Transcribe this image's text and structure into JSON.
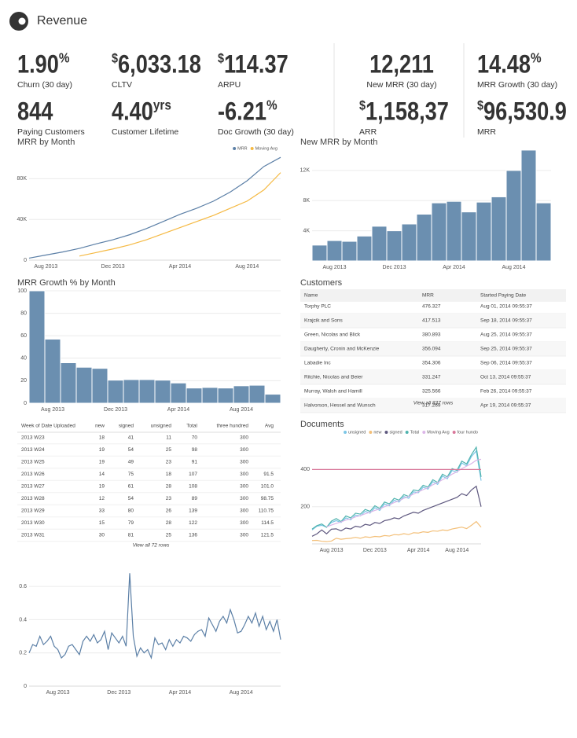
{
  "header": {
    "title": "Revenue"
  },
  "kpis": [
    {
      "value": "1.90",
      "sup": "%",
      "label": "Churn (30 day)"
    },
    {
      "prefix": "$",
      "value": "6,033.18",
      "label": "CLTV"
    },
    {
      "prefix": "$",
      "value": "114.37",
      "label": "ARPU"
    },
    {
      "value": "844",
      "label": "Paying Customers"
    },
    {
      "value": "4.40",
      "sup": "yrs",
      "label": "Customer Lifetime"
    },
    {
      "value": "-6.21",
      "sup": "%",
      "label": "Doc Growth (30 day)"
    },
    {
      "value": "12,211",
      "label": "New MRR (30 day)"
    },
    {
      "value": "14.48",
      "sup": "%",
      "label": "MRR Growth (30 day)"
    },
    {
      "prefix": "$",
      "value": "1,158,37",
      "label": "ARR"
    },
    {
      "prefix": "$",
      "value": "96,530.9",
      "label": "MRR"
    }
  ],
  "chart_data": [
    {
      "type": "line",
      "title": "MRR by Month",
      "legend": "top-right",
      "grid": true,
      "categories": [
        null,
        "Aug 2013",
        null,
        null,
        null,
        "Dec 2013",
        null,
        null,
        null,
        "Apr 2014",
        null,
        null,
        null,
        "Aug 2014",
        null,
        null
      ],
      "series": [
        {
          "name": "MRR",
          "color": "#5b7fa6",
          "values": [
            2000,
            5000,
            8000,
            11500,
            16000,
            20000,
            25000,
            31000,
            38000,
            45000,
            51000,
            58000,
            67000,
            78000,
            92000,
            101000
          ]
        },
        {
          "name": "Moving Avg",
          "color": "#f5b942",
          "values": [
            null,
            null,
            null,
            4000,
            7500,
            11000,
            15000,
            20000,
            26000,
            32000,
            38000,
            44000,
            51000,
            58000,
            69000,
            86000
          ]
        }
      ],
      "ylim": [
        0,
        105000
      ],
      "yticks": [
        0,
        {
          "value": 40000,
          "label": "40K"
        },
        {
          "value": 80000,
          "label": "80K"
        }
      ]
    },
    {
      "type": "bar",
      "title": "New MRR by Month",
      "grid": true,
      "color": "#6b8fb0",
      "categories": [
        null,
        "Aug 2013",
        null,
        null,
        null,
        "Dec 2013",
        null,
        null,
        null,
        "Apr 2014",
        null,
        null,
        null,
        "Aug 2014",
        null,
        null
      ],
      "values": [
        2100,
        2700,
        2600,
        3300,
        4600,
        4000,
        4900,
        6200,
        7700,
        7900,
        6500,
        7800,
        8500,
        12000,
        14700,
        7700
      ],
      "ylim": [
        0,
        14800
      ],
      "yticks": [
        {
          "value": 4000,
          "label": "4K"
        },
        {
          "value": 8000,
          "label": "8K"
        },
        {
          "value": 12000,
          "label": "12K"
        }
      ]
    },
    {
      "type": "bar",
      "title": "MRR Growth % by Month",
      "grid": true,
      "color": "#6b8fb0",
      "categories": [
        null,
        "Aug 2013",
        null,
        null,
        null,
        "Dec 2013",
        null,
        null,
        null,
        "Apr 2014",
        null,
        null,
        null,
        "Aug 2014",
        null,
        null
      ],
      "values": [
        100,
        57,
        36,
        32,
        31,
        20.5,
        21,
        21,
        20.5,
        18,
        13.5,
        14,
        13.5,
        15.5,
        16,
        8
      ],
      "ylim": [
        0,
        100
      ],
      "yticks": [
        0,
        20,
        40,
        60,
        80,
        100
      ]
    },
    {
      "type": "line",
      "title": "Documents",
      "legend": "top",
      "grid": true,
      "categories": [
        null,
        null,
        null,
        null,
        "Aug 2013",
        null,
        null,
        null,
        null,
        null,
        null,
        null,
        null,
        "Dec 2013",
        null,
        null,
        null,
        null,
        null,
        null,
        null,
        null,
        "Apr 2014",
        null,
        null,
        null,
        null,
        null,
        null,
        null,
        "Aug 2014",
        null,
        null,
        null,
        null,
        null
      ],
      "series": [
        {
          "name": "unsigned",
          "color": "#7cc6e6",
          "values": [
            75,
            95,
            100,
            90,
            115,
            125,
            115,
            140,
            130,
            155,
            150,
            175,
            165,
            195,
            180,
            215,
            205,
            235,
            225,
            255,
            245,
            280,
            275,
            305,
            295,
            335,
            320,
            365,
            350,
            395,
            385,
            435,
            420,
            470,
            500,
            340
          ]
        },
        {
          "name": "new",
          "color": "#f3bf78",
          "values": [
            18,
            19,
            14,
            12,
            15,
            30,
            25,
            28,
            30,
            35,
            30,
            38,
            35,
            40,
            38,
            45,
            42,
            50,
            48,
            55,
            50,
            60,
            58,
            65,
            62,
            70,
            68,
            75,
            72,
            80,
            85,
            90,
            82,
            100,
            120,
            90
          ]
        },
        {
          "name": "signed",
          "color": "#5e587f",
          "values": [
            41,
            54,
            75,
            54,
            79,
            81,
            70,
            85,
            80,
            95,
            90,
            105,
            100,
            115,
            110,
            125,
            130,
            140,
            135,
            150,
            160,
            170,
            165,
            180,
            190,
            200,
            210,
            220,
            230,
            240,
            250,
            270,
            260,
            290,
            310,
            200
          ]
        },
        {
          "name": "Total",
          "color": "#4fb3ae",
          "values": [
            80,
            98,
            107,
            89,
            122,
            136,
            120,
            150,
            140,
            165,
            160,
            185,
            175,
            205,
            190,
            225,
            215,
            245,
            235,
            265,
            255,
            290,
            285,
            315,
            305,
            345,
            330,
            375,
            360,
            405,
            395,
            445,
            430,
            480,
            520,
            360
          ]
        },
        {
          "name": "Moving Avg",
          "color": "#dcb6e8",
          "values": [
            null,
            null,
            null,
            91,
            101,
            110,
            118,
            128,
            135,
            145,
            152,
            162,
            170,
            180,
            188,
            200,
            210,
            222,
            232,
            245,
            255,
            268,
            280,
            292,
            302,
            318,
            330,
            345,
            358,
            375,
            388,
            405,
            418,
            432,
            450,
            455
          ]
        },
        {
          "name": "four hundo",
          "color": "#d9779a",
          "values": [
            400,
            400,
            400,
            400,
            400,
            400,
            400,
            400,
            400,
            400,
            400,
            400,
            400,
            400,
            400,
            400,
            400,
            400,
            400,
            400,
            400,
            400,
            400,
            400,
            400,
            400,
            400,
            400,
            400,
            400,
            400,
            400,
            400,
            400,
            400,
            400
          ]
        }
      ],
      "ylim": [
        0,
        575
      ],
      "yticks": [
        200,
        400
      ]
    },
    {
      "type": "line",
      "grid": true,
      "color": "#5b7fa6",
      "categories": [
        null,
        null,
        null,
        null,
        null,
        null,
        null,
        null,
        "Aug 2013",
        null,
        null,
        null,
        null,
        null,
        null,
        null,
        null,
        null,
        null,
        null,
        null,
        null,
        null,
        null,
        null,
        "Dec 2013",
        null,
        null,
        null,
        null,
        null,
        null,
        null,
        null,
        null,
        null,
        null,
        null,
        null,
        null,
        null,
        null,
        "Apr 2014",
        null,
        null,
        null,
        null,
        null,
        null,
        null,
        null,
        null,
        null,
        null,
        null,
        null,
        null,
        null,
        null,
        "Aug 2014",
        null,
        null,
        null,
        null,
        null,
        null,
        null,
        null,
        null,
        null,
        null
      ],
      "values": [
        0.2,
        0.25,
        0.24,
        0.3,
        0.25,
        0.27,
        0.3,
        0.24,
        0.22,
        0.17,
        0.19,
        0.24,
        0.25,
        0.22,
        0.19,
        0.27,
        0.3,
        0.27,
        0.31,
        0.26,
        0.28,
        0.33,
        0.22,
        0.32,
        0.29,
        0.26,
        0.3,
        0.24,
        0.68,
        0.3,
        0.18,
        0.23,
        0.2,
        0.22,
        0.17,
        0.29,
        0.25,
        0.26,
        0.22,
        0.28,
        0.24,
        0.28,
        0.26,
        0.3,
        0.29,
        0.27,
        0.31,
        0.33,
        0.34,
        0.3,
        0.41,
        0.37,
        0.33,
        0.39,
        0.42,
        0.38,
        0.46,
        0.4,
        0.32,
        0.33,
        0.37,
        0.42,
        0.38,
        0.44,
        0.36,
        0.42,
        0.34,
        0.39,
        0.33,
        0.4,
        0.28
      ],
      "ylim": [
        0,
        0.7
      ],
      "yticks": [
        0,
        0.2,
        0.4,
        0.6
      ]
    }
  ],
  "customers_table": {
    "title": "Customers",
    "columns": [
      "Name",
      "MRR",
      "Started Paying Date"
    ],
    "rows": [
      [
        "Torphy PLC",
        "476.327",
        "Aug 01, 2014 09:55:37"
      ],
      [
        "Krajcik and Sons",
        "417.513",
        "Sep 18, 2014 09:55:37"
      ],
      [
        "Green, Nicolas and Blick",
        "380.893",
        "Aug 25, 2014 09:55:37"
      ],
      [
        "Daugherty, Cronin and McKenzie",
        "356.094",
        "Sep 25, 2014 09:55:37"
      ],
      [
        "Labadie Inc",
        "354.306",
        "Sep 06, 2014 09:55:37"
      ],
      [
        "Ritchie, Nicolas and Beier",
        "331.247",
        "Oct 13, 2014 09:55:37"
      ],
      [
        "Murray, Walsh and Hamill",
        "325.566",
        "Feb 26, 2014 09:55:37"
      ],
      [
        "Halvorson, Hessel and Wunsch",
        "317.269",
        "Apr 19, 2014 09:55:37"
      ]
    ],
    "footer": "View all 837 rows"
  },
  "uploads_table": {
    "columns": [
      "Week of Date Uploaded",
      "new",
      "signed",
      "unsigned",
      "Total",
      "three hundred",
      "Avg"
    ],
    "rows": [
      [
        "2013 W23",
        "18",
        "41",
        "11",
        "70",
        "300",
        null
      ],
      [
        "2013 W24",
        "19",
        "54",
        "25",
        "98",
        "300",
        null
      ],
      [
        "2013 W25",
        "19",
        "49",
        "23",
        "91",
        "300",
        null
      ],
      [
        "2013 W26",
        "14",
        "75",
        "18",
        "107",
        "300",
        "91.5"
      ],
      [
        "2013 W27",
        "19",
        "61",
        "28",
        "108",
        "300",
        "101.0"
      ],
      [
        "2013 W28",
        "12",
        "54",
        "23",
        "89",
        "300",
        "98.75"
      ],
      [
        "2013 W29",
        "33",
        "80",
        "26",
        "139",
        "300",
        "110.75"
      ],
      [
        "2013 W30",
        "15",
        "79",
        "28",
        "122",
        "300",
        "114.5"
      ],
      [
        "2013 W31",
        "30",
        "81",
        "25",
        "136",
        "300",
        "121.5"
      ]
    ],
    "footer": "View all 72 rows"
  }
}
